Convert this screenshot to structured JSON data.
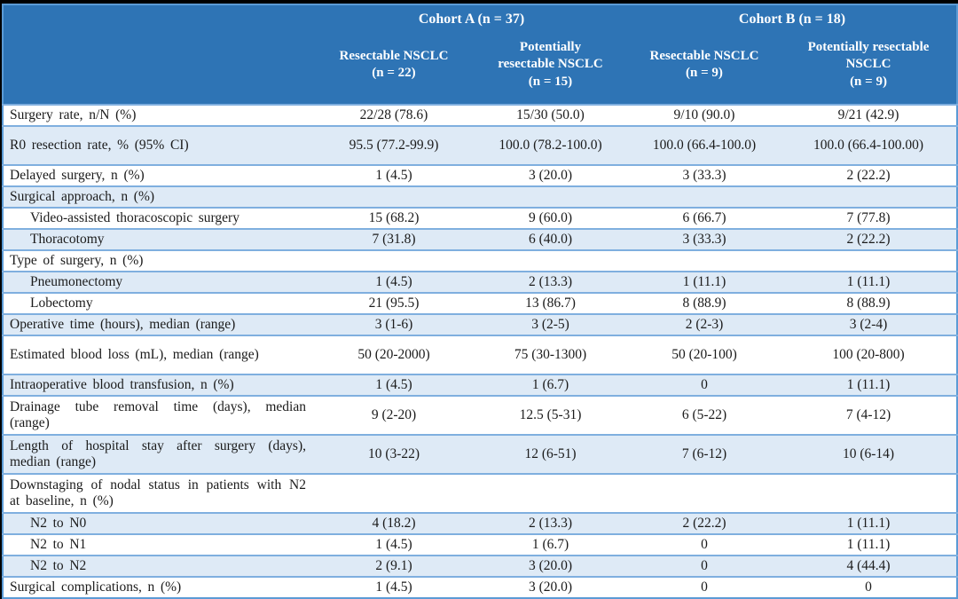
{
  "colors": {
    "header_bg": "#2E74B5",
    "band_bg": "#DEEAF6",
    "border": "#5B9BD5",
    "row_divider": "#7FAFDF",
    "header_text": "#FFFFFF",
    "body_text": "#1B1B1B",
    "frame_bg": "#000000"
  },
  "table": {
    "header": {
      "cohort_a": "Cohort A (n = 37)",
      "cohort_b": "Cohort B (n = 18)",
      "subgroups": [
        "Resectable NSCLC\n(n = 22)",
        "Potentially\nresectable NSCLC\n(n = 15)",
        "Resectable NSCLC\n(n = 9)",
        "Potentially resectable\nNSCLC\n(n = 9)"
      ]
    },
    "rows": [
      {
        "label": "Surgery rate, n/N (%)",
        "indent": false,
        "tall": false,
        "values": [
          "22/28 (78.6)",
          "15/30 (50.0)",
          "9/10 (90.0)",
          "9/21 (42.9)"
        ]
      },
      {
        "label": "R0 resection rate, % (95% CI)",
        "indent": false,
        "tall": true,
        "values": [
          "95.5 (77.2-99.9)",
          "100.0 (78.2-100.0)",
          "100.0 (66.4-100.0)",
          "100.0 (66.4-100.00)"
        ]
      },
      {
        "label": "Delayed surgery, n (%)",
        "indent": false,
        "tall": false,
        "values": [
          "1 (4.5)",
          "3 (20.0)",
          "3 (33.3)",
          "2 (22.2)"
        ]
      },
      {
        "label": "Surgical approach, n (%)",
        "indent": false,
        "tall": false,
        "values": [
          "",
          "",
          "",
          ""
        ]
      },
      {
        "label": "Video-assisted thoracoscopic surgery",
        "indent": true,
        "tall": false,
        "values": [
          "15 (68.2)",
          "9 (60.0)",
          "6 (66.7)",
          "7 (77.8)"
        ]
      },
      {
        "label": "Thoracotomy",
        "indent": true,
        "tall": false,
        "values": [
          "7 (31.8)",
          "6 (40.0)",
          "3 (33.3)",
          "2 (22.2)"
        ]
      },
      {
        "label": "Type of surgery, n (%)",
        "indent": false,
        "tall": false,
        "values": [
          "",
          "",
          "",
          ""
        ]
      },
      {
        "label": "Pneumonectomy",
        "indent": true,
        "tall": false,
        "values": [
          "1 (4.5)",
          "2 (13.3)",
          "1 (11.1)",
          "1 (11.1)"
        ]
      },
      {
        "label": "Lobectomy",
        "indent": true,
        "tall": false,
        "values": [
          "21 (95.5)",
          "13 (86.7)",
          "8 (88.9)",
          "8 (88.9)"
        ]
      },
      {
        "label": "Operative time (hours), median (range)",
        "indent": false,
        "tall": false,
        "values": [
          "3 (1-6)",
          "3 (2-5)",
          "2 (2-3)",
          "3 (2-4)"
        ]
      },
      {
        "label": "Estimated blood loss (mL), median (range)",
        "indent": false,
        "tall": true,
        "values": [
          "50 (20-2000)",
          "75 (30-1300)",
          "50 (20-100)",
          "100 (20-800)"
        ]
      },
      {
        "label": "Intraoperative blood transfusion, n (%)",
        "indent": false,
        "tall": false,
        "values": [
          "1 (4.5)",
          "1 (6.7)",
          "0",
          "1 (11.1)"
        ]
      },
      {
        "label": "Drainage tube removal time (days), median (range)",
        "indent": false,
        "tall": true,
        "values": [
          "9 (2-20)",
          "12.5 (5-31)",
          "6 (5-22)",
          "7 (4-12)"
        ]
      },
      {
        "label": "Length of hospital stay after surgery (days), median (range)",
        "indent": false,
        "tall": true,
        "values": [
          "10 (3-22)",
          "12 (6-51)",
          "7 (6-12)",
          "10 (6-14)"
        ]
      },
      {
        "label": "Downstaging of nodal status in patients with N2 at baseline, n (%)",
        "indent": false,
        "tall": true,
        "values": [
          "",
          "",
          "",
          ""
        ]
      },
      {
        "label": "N2 to N0",
        "indent": true,
        "tall": false,
        "values": [
          "4 (18.2)",
          "2 (13.3)",
          "2 (22.2)",
          "1 (11.1)"
        ]
      },
      {
        "label": "N2 to N1",
        "indent": true,
        "tall": false,
        "values": [
          "1 (4.5)",
          "1 (6.7)",
          "0",
          "1 (11.1)"
        ]
      },
      {
        "label": "N2 to N2",
        "indent": true,
        "tall": false,
        "values": [
          "2 (9.1)",
          "3 (20.0)",
          "0",
          "4 (44.4)"
        ]
      },
      {
        "label": "Surgical complications, n (%)",
        "indent": false,
        "tall": false,
        "values": [
          "1 (4.5)",
          "3 (20.0)",
          "0",
          "0"
        ]
      }
    ]
  }
}
